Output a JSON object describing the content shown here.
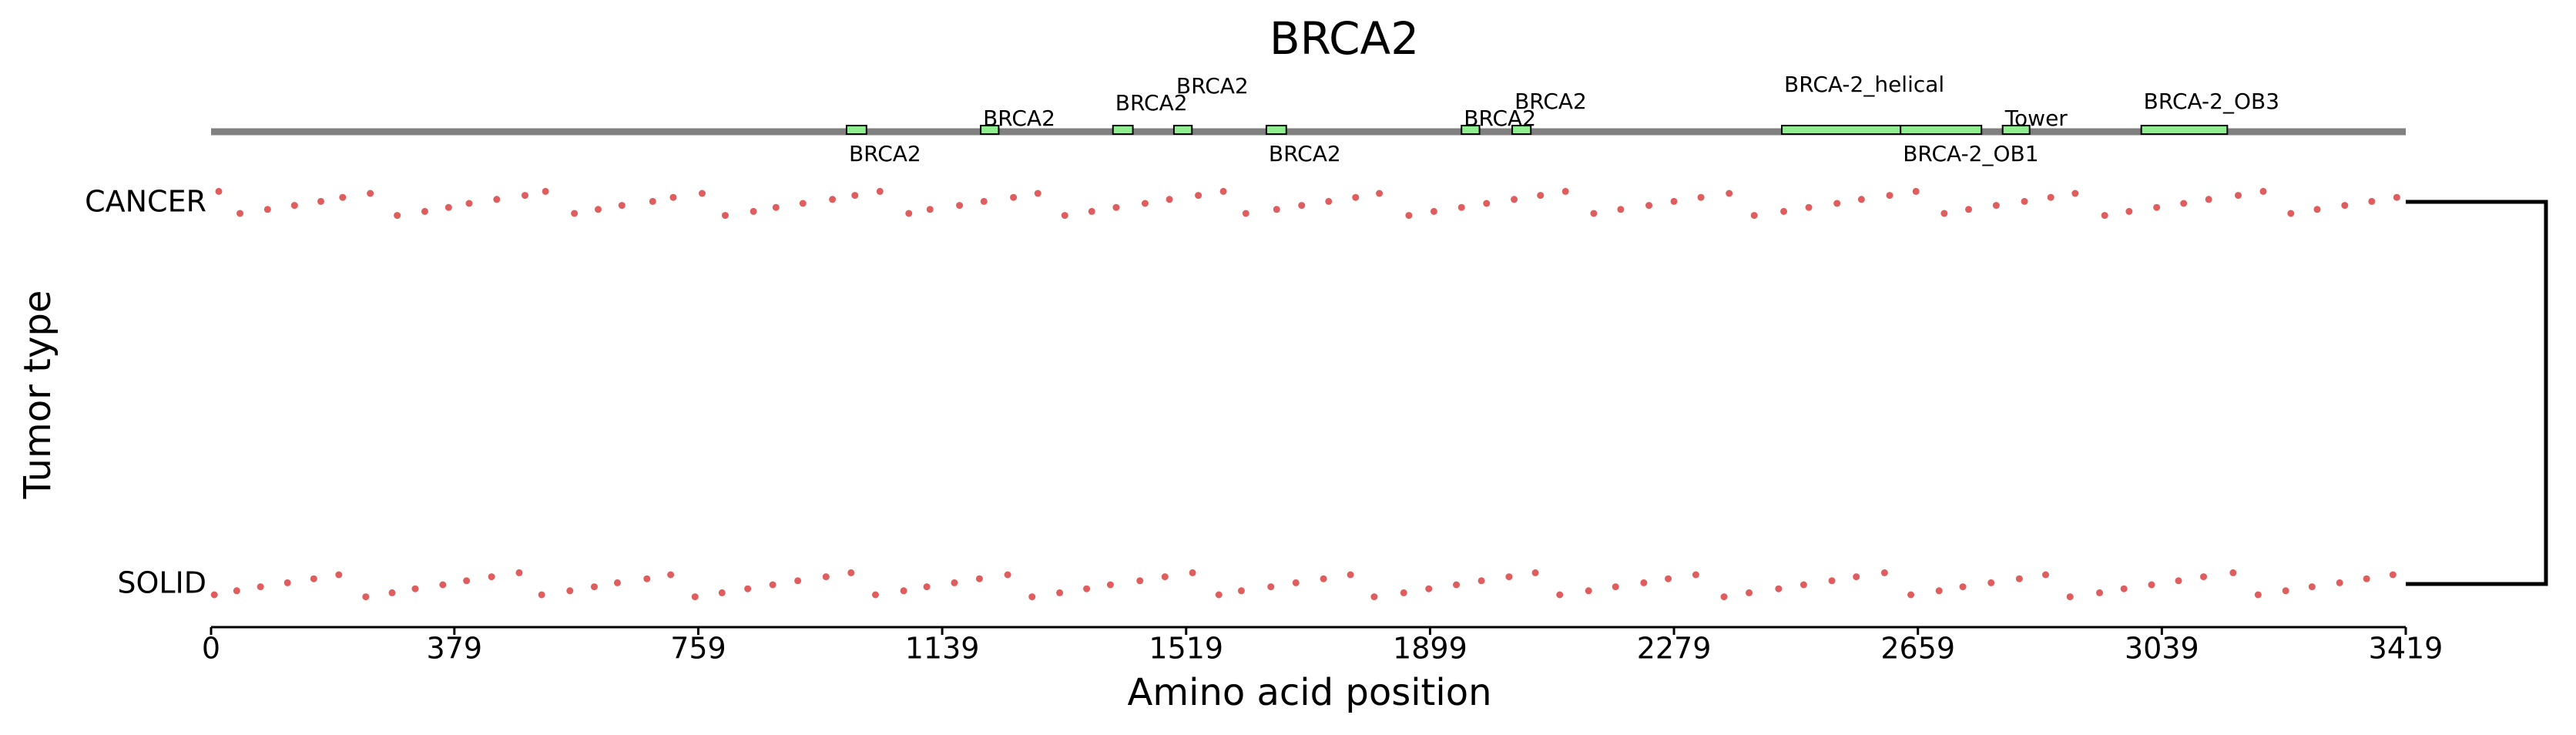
{
  "chart_data": {
    "type": "strip",
    "title": "BRCA2",
    "xlabel": "Amino acid position",
    "ylabel": "Tumor type",
    "xlim": [
      0,
      3419
    ],
    "xticks": [
      0,
      379,
      759,
      1139,
      1519,
      1899,
      2279,
      2659,
      3039,
      3419
    ],
    "domain_color": "#90ee90",
    "domains": [
      {
        "name": "BRCA2",
        "start": 990,
        "end": 1021
      },
      {
        "name": "BRCA2",
        "start": 1199,
        "end": 1227
      },
      {
        "name": "BRCA2",
        "start": 1405,
        "end": 1436
      },
      {
        "name": "BRCA2",
        "start": 1500,
        "end": 1528
      },
      {
        "name": "BRCA2",
        "start": 1644,
        "end": 1675
      },
      {
        "name": "BRCA2",
        "start": 1948,
        "end": 1976
      },
      {
        "name": "BRCA2",
        "start": 2027,
        "end": 2056
      },
      {
        "name": "BRCA-2_helical",
        "start": 2447,
        "end": 2632
      },
      {
        "name": "BRCA-2_OB1",
        "start": 2632,
        "end": 2758
      },
      {
        "name": "Tower",
        "start": 2791,
        "end": 2833
      },
      {
        "name": "BRCA-2_OB3",
        "start": 3007,
        "end": 3141
      }
    ],
    "series": [
      {
        "name": "CANCER",
        "color": "#d62728",
        "values": [
          12,
          45,
          88,
          130,
          171,
          205,
          248,
          290,
          333,
          370,
          402,
          445,
          489,
          521,
          566,
          603,
          640,
          688,
          720,
          765,
          801,
          845,
          880,
          922,
          968,
          1003,
          1042,
          1087,
          1120,
          1166,
          1204,
          1250,
          1288,
          1330,
          1372,
          1410,
          1455,
          1493,
          1538,
          1577,
          1612,
          1660,
          1699,
          1741,
          1783,
          1820,
          1866,
          1905,
          1948,
          1987,
          2030,
          2071,
          2110,
          2154,
          2196,
          2240,
          2279,
          2321,
          2365,
          2404,
          2450,
          2489,
          2533,
          2571,
          2615,
          2656,
          2700,
          2738,
          2781,
          2825,
          2866,
          2904,
          2950,
          2988,
          3031,
          3073,
          3112,
          3158,
          3197,
          3240,
          3281,
          3324,
          3366,
          3405
        ]
      },
      {
        "name": "SOLID",
        "color": "#d62728",
        "values": [
          5,
          40,
          77,
          119,
          160,
          199,
          241,
          282,
          318,
          361,
          398,
          437,
          480,
          515,
          559,
          597,
          633,
          679,
          716,
          754,
          796,
          836,
          875,
          914,
          958,
          997,
          1035,
          1079,
          1115,
          1158,
          1197,
          1241,
          1279,
          1322,
          1364,
          1401,
          1447,
          1486,
          1529,
          1570,
          1605,
          1651,
          1690,
          1733,
          1775,
          1812,
          1858,
          1897,
          1940,
          1979,
          2022,
          2063,
          2101,
          2146,
          2188,
          2232,
          2270,
          2313,
          2357,
          2396,
          2442,
          2481,
          2525,
          2563,
          2607,
          2648,
          2692,
          2729,
          2773,
          2817,
          2858,
          2896,
          2942,
          2980,
          3023,
          3065,
          3104,
          3150,
          3189,
          3232,
          3273,
          3316,
          3358,
          3399
        ]
      }
    ]
  }
}
